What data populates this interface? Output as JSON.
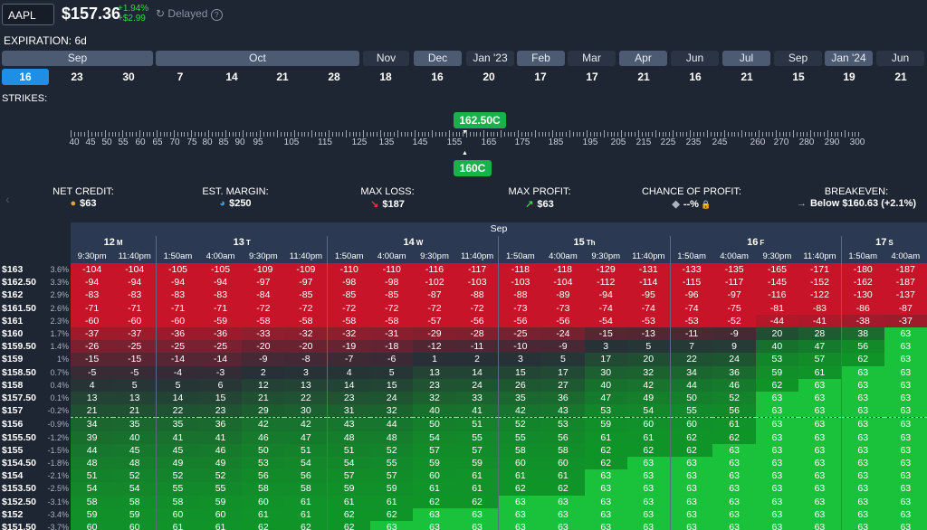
{
  "header": {
    "ticker": "AAPL",
    "price": "$157.36",
    "change_pct": "+1.94%",
    "change_abs": "+$2.99",
    "status": "Delayed",
    "status_icon": "refresh-icon",
    "help_icon": "help-icon"
  },
  "expiration": {
    "label": "EXPIRATION: 6d",
    "months": [
      {
        "label": "Sep",
        "style": "light"
      },
      {
        "label": "Oct",
        "style": "light"
      },
      {
        "label": "Nov",
        "style": "dark"
      },
      {
        "label": "Dec",
        "style": "light"
      },
      {
        "label": "Jan '23",
        "style": "dark"
      },
      {
        "label": "Feb",
        "style": "light"
      },
      {
        "label": "Mar",
        "style": "dark"
      },
      {
        "label": "Apr",
        "style": "light"
      },
      {
        "label": "Jun",
        "style": "dark"
      },
      {
        "label": "Jul",
        "style": "light"
      },
      {
        "label": "Sep",
        "style": "dark"
      },
      {
        "label": "Jan '24",
        "style": "light"
      },
      {
        "label": "Jun",
        "style": "dark"
      }
    ],
    "days": [
      "16",
      "23",
      "30",
      "7",
      "14",
      "21",
      "28",
      "18",
      "16",
      "20",
      "17",
      "17",
      "21",
      "16",
      "21",
      "15",
      "19",
      "21"
    ],
    "selected_day_index": 0
  },
  "strikes": {
    "label": "STRIKES:",
    "tick_labels": [
      "40",
      "45",
      "50",
      "55",
      "60",
      "65",
      "70",
      "75",
      "80",
      "85",
      "90",
      "95",
      "105",
      "115",
      "125",
      "135",
      "145",
      "155",
      "165",
      "175",
      "185",
      "195",
      "205",
      "215",
      "225",
      "235",
      "245",
      "260",
      "270",
      "280",
      "290",
      "300"
    ],
    "upper_strike": "162.50C",
    "lower_strike": "160C"
  },
  "stats": [
    {
      "label": "NET CREDIT:",
      "value": "$63",
      "icon": "coins-icon",
      "icon_color": "#e0a52e"
    },
    {
      "label": "EST. MARGIN:",
      "value": "$250",
      "icon": "pie-chart-icon",
      "icon_color": "#3aa3e3"
    },
    {
      "label": "MAX LOSS:",
      "value": "$187",
      "icon": "arrow-down-right-icon",
      "icon_color": "#e0383e"
    },
    {
      "label": "MAX PROFIT:",
      "value": "$63",
      "icon": "arrow-up-right-icon",
      "icon_color": "#39d353"
    },
    {
      "label": "CHANCE OF PROFIT:",
      "value": "--%",
      "icon": "dice-icon",
      "icon_color": "#aab3c2"
    },
    {
      "label": "BREAKEVEN:",
      "value": "Below $160.63 (+2.1%)",
      "icon": "arrow-right-icon",
      "icon_color": "#aab3c2"
    }
  ],
  "grid": {
    "month": "Sep",
    "days": [
      {
        "day": "12",
        "dow": "M",
        "span": 2
      },
      {
        "day": "13",
        "dow": "T",
        "span": 4
      },
      {
        "day": "14",
        "dow": "W",
        "span": 4
      },
      {
        "day": "15",
        "dow": "Th",
        "span": 4
      },
      {
        "day": "16",
        "dow": "F",
        "span": 4
      },
      {
        "day": "17",
        "dow": "S",
        "span": 2
      }
    ],
    "times": [
      "9:30pm",
      "11:40pm",
      "1:50am",
      "4:00am",
      "9:30pm",
      "11:40pm",
      "1:50am",
      "4:00am",
      "9:30pm",
      "11:40pm",
      "1:50am",
      "4:00am",
      "9:30pm",
      "11:40pm",
      "1:50am",
      "4:00am",
      "9:30pm",
      "11:40pm",
      "1:50am",
      "4:00am"
    ],
    "day_start_cols": [
      2,
      6,
      10,
      14,
      18
    ],
    "current_price_after_row": 12,
    "rows": [
      {
        "strike": "$163",
        "pct": "3.6%",
        "values": [
          -104,
          -104,
          -105,
          -105,
          -109,
          -109,
          -110,
          -110,
          -116,
          -117,
          -118,
          -118,
          -129,
          -131,
          -133,
          -135,
          -165,
          -171,
          -180,
          -187
        ]
      },
      {
        "strike": "$162.50",
        "pct": "3.3%",
        "values": [
          -94,
          -94,
          -94,
          -94,
          -97,
          -97,
          -98,
          -98,
          -102,
          -103,
          -103,
          -104,
          -112,
          -114,
          -115,
          -117,
          -145,
          -152,
          -162,
          -187
        ]
      },
      {
        "strike": "$162",
        "pct": "2.9%",
        "values": [
          -83,
          -83,
          -83,
          -83,
          -84,
          -85,
          -85,
          -85,
          -87,
          -88,
          -88,
          -89,
          -94,
          -95,
          -96,
          -97,
          -116,
          -122,
          -130,
          -137
        ]
      },
      {
        "strike": "$161.50",
        "pct": "2.6%",
        "values": [
          -71,
          -71,
          -71,
          -71,
          -72,
          -72,
          -72,
          -72,
          -72,
          -72,
          -73,
          -73,
          -74,
          -74,
          -74,
          -75,
          -81,
          -83,
          -86,
          -87
        ]
      },
      {
        "strike": "$161",
        "pct": "2.3%",
        "values": [
          -60,
          -60,
          -60,
          -59,
          -58,
          -58,
          -58,
          -58,
          -57,
          -56,
          -56,
          -56,
          -54,
          -53,
          -53,
          -52,
          -44,
          -41,
          -38,
          -37
        ]
      },
      {
        "strike": "$160",
        "pct": "1.7%",
        "values": [
          -37,
          -37,
          -36,
          -36,
          -33,
          -32,
          -32,
          -31,
          -29,
          -28,
          -25,
          -24,
          -15,
          -13,
          -11,
          -9,
          20,
          28,
          38,
          63
        ]
      },
      {
        "strike": "$159.50",
        "pct": "1.4%",
        "values": [
          -26,
          -25,
          -25,
          -25,
          -20,
          -20,
          -19,
          -18,
          -12,
          -11,
          -10,
          -9,
          3,
          5,
          7,
          9,
          40,
          47,
          56,
          63
        ]
      },
      {
        "strike": "$159",
        "pct": "1%",
        "values": [
          -15,
          -15,
          -14,
          -14,
          -9,
          -8,
          -7,
          -6,
          1,
          2,
          3,
          5,
          17,
          20,
          22,
          24,
          53,
          57,
          62,
          63
        ]
      },
      {
        "strike": "$158.50",
        "pct": "0.7%",
        "values": [
          -5,
          -5,
          -4,
          -3,
          2,
          3,
          4,
          5,
          13,
          14,
          15,
          17,
          30,
          32,
          34,
          36,
          59,
          61,
          63,
          63
        ]
      },
      {
        "strike": "$158",
        "pct": "0.4%",
        "values": [
          4,
          5,
          5,
          6,
          12,
          13,
          14,
          15,
          23,
          24,
          26,
          27,
          40,
          42,
          44,
          46,
          62,
          63,
          63,
          63
        ]
      },
      {
        "strike": "$157.50",
        "pct": "0.1%",
        "values": [
          13,
          13,
          14,
          15,
          21,
          22,
          23,
          24,
          32,
          33,
          35,
          36,
          47,
          49,
          50,
          52,
          63,
          63,
          63,
          63
        ]
      },
      {
        "strike": "$157",
        "pct": "-0.2%",
        "values": [
          21,
          21,
          22,
          23,
          29,
          30,
          31,
          32,
          40,
          41,
          42,
          43,
          53,
          54,
          55,
          56,
          63,
          63,
          63,
          63
        ]
      },
      {
        "strike": "$156",
        "pct": "-0.9%",
        "values": [
          34,
          35,
          35,
          36,
          42,
          42,
          43,
          44,
          50,
          51,
          52,
          53,
          59,
          60,
          60,
          61,
          63,
          63,
          63,
          63
        ]
      },
      {
        "strike": "$155.50",
        "pct": "-1.2%",
        "values": [
          39,
          40,
          41,
          41,
          46,
          47,
          48,
          48,
          54,
          55,
          55,
          56,
          61,
          61,
          62,
          62,
          63,
          63,
          63,
          63
        ]
      },
      {
        "strike": "$155",
        "pct": "-1.5%",
        "values": [
          44,
          45,
          45,
          46,
          50,
          51,
          51,
          52,
          57,
          57,
          58,
          58,
          62,
          62,
          62,
          63,
          63,
          63,
          63,
          63
        ]
      },
      {
        "strike": "$154.50",
        "pct": "-1.8%",
        "values": [
          48,
          48,
          49,
          49,
          53,
          54,
          54,
          55,
          59,
          59,
          60,
          60,
          62,
          63,
          63,
          63,
          63,
          63,
          63,
          63
        ]
      },
      {
        "strike": "$154",
        "pct": "-2.1%",
        "values": [
          51,
          52,
          52,
          52,
          56,
          56,
          57,
          57,
          60,
          61,
          61,
          61,
          63,
          63,
          63,
          63,
          63,
          63,
          63,
          63
        ]
      },
      {
        "strike": "$153.50",
        "pct": "-2.5%",
        "values": [
          54,
          54,
          55,
          55,
          58,
          58,
          59,
          59,
          61,
          61,
          62,
          62,
          63,
          63,
          63,
          63,
          63,
          63,
          63,
          63
        ]
      },
      {
        "strike": "$152.50",
        "pct": "-3.1%",
        "values": [
          58,
          58,
          58,
          59,
          60,
          61,
          61,
          61,
          62,
          62,
          63,
          63,
          63,
          63,
          63,
          63,
          63,
          63,
          63,
          63
        ]
      },
      {
        "strike": "$152",
        "pct": "-3.4%",
        "values": [
          59,
          59,
          60,
          60,
          61,
          61,
          62,
          62,
          63,
          63,
          63,
          63,
          63,
          63,
          63,
          63,
          63,
          63,
          63,
          63
        ]
      },
      {
        "strike": "$151.50",
        "pct": "-3.7%",
        "values": [
          60,
          60,
          61,
          61,
          62,
          62,
          62,
          63,
          63,
          63,
          63,
          63,
          63,
          63,
          63,
          63,
          63,
          63,
          63,
          63
        ]
      }
    ]
  }
}
